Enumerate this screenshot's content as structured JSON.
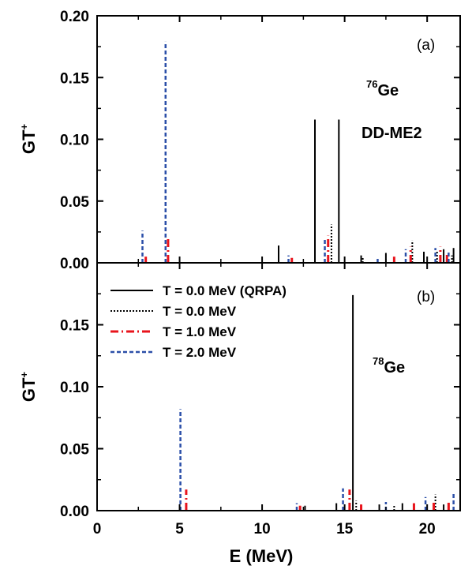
{
  "chart_data": {
    "type": "bar",
    "xlabel": "E (MeV)",
    "ylabel": "GT",
    "ylabel_sup": "+",
    "xlim": [
      0,
      22
    ],
    "x_ticks": [
      "0",
      "5",
      "10",
      "15",
      "20"
    ],
    "series_styles": [
      {
        "name": "T = 0.0 MeV (QRPA)",
        "color": "#000000",
        "dash": "solid"
      },
      {
        "name": "T = 0.0 MeV",
        "color": "#000000",
        "dash": "dotted"
      },
      {
        "name": "T = 1.0 MeV",
        "color": "#e8141c",
        "dash": "dashdot"
      },
      {
        "name": "T = 2.0 MeV",
        "color": "#2b4fa8",
        "dash": "dashed"
      }
    ],
    "panels": [
      {
        "tag": "(a)",
        "nucleus_mass": "76",
        "nucleus_symbol": "Ge",
        "extra_label": "DD-ME2",
        "ylim": [
          0,
          0.2
        ],
        "y_ticks": [
          "0.00",
          "0.05",
          "0.10",
          "0.15",
          "0.20"
        ],
        "series": [
          {
            "name": "T = 0.0 MeV (QRPA)",
            "points": [
              {
                "x": 11.0,
                "y": 0.014
              },
              {
                "x": 13.2,
                "y": 0.116
              },
              {
                "x": 14.65,
                "y": 0.116
              },
              {
                "x": 16.0,
                "y": 0.006
              },
              {
                "x": 17.5,
                "y": 0.008
              },
              {
                "x": 19.8,
                "y": 0.009
              },
              {
                "x": 21.0,
                "y": 0.011
              },
              {
                "x": 21.6,
                "y": 0.012
              }
            ]
          },
          {
            "name": "T = 0.0 MeV",
            "points": [
              {
                "x": 11.0,
                "y": 0.012
              },
              {
                "x": 14.2,
                "y": 0.031
              },
              {
                "x": 16.1,
                "y": 0.005
              },
              {
                "x": 19.1,
                "y": 0.018
              },
              {
                "x": 20.6,
                "y": 0.01
              },
              {
                "x": 21.5,
                "y": 0.006
              }
            ]
          },
          {
            "name": "T = 1.0 MeV",
            "points": [
              {
                "x": 2.95,
                "y": 0.005
              },
              {
                "x": 4.3,
                "y": 0.02
              },
              {
                "x": 11.8,
                "y": 0.004
              },
              {
                "x": 14.0,
                "y": 0.022
              },
              {
                "x": 18.0,
                "y": 0.005
              },
              {
                "x": 19.0,
                "y": 0.013
              },
              {
                "x": 20.8,
                "y": 0.013
              },
              {
                "x": 21.2,
                "y": 0.007
              }
            ]
          },
          {
            "name": "T = 2.0 MeV",
            "points": [
              {
                "x": 2.75,
                "y": 0.026
              },
              {
                "x": 4.15,
                "y": 0.179
              },
              {
                "x": 11.6,
                "y": 0.006
              },
              {
                "x": 13.8,
                "y": 0.02
              },
              {
                "x": 17.0,
                "y": 0.004
              },
              {
                "x": 18.7,
                "y": 0.011
              },
              {
                "x": 20.5,
                "y": 0.012
              },
              {
                "x": 21.3,
                "y": 0.009
              }
            ]
          }
        ]
      },
      {
        "tag": "(b)",
        "nucleus_mass": "78",
        "nucleus_symbol": "Ge",
        "extra_label": "",
        "ylim": [
          0,
          0.2
        ],
        "y_ticks": [
          "0.00",
          "0.05",
          "0.10",
          "0.15",
          ""
        ],
        "series": [
          {
            "name": "T = 0.0 MeV (QRPA)",
            "points": [
              {
                "x": 15.5,
                "y": 0.174
              },
              {
                "x": 12.6,
                "y": 0.004
              },
              {
                "x": 14.5,
                "y": 0.006
              },
              {
                "x": 17.1,
                "y": 0.005
              },
              {
                "x": 18.5,
                "y": 0.006
              },
              {
                "x": 21.0,
                "y": 0.005
              }
            ]
          },
          {
            "name": "T = 0.0 MeV",
            "points": [
              {
                "x": 15.7,
                "y": 0.008
              },
              {
                "x": 18.0,
                "y": 0.004
              },
              {
                "x": 20.5,
                "y": 0.013
              }
            ]
          },
          {
            "name": "T = 1.0 MeV",
            "points": [
              {
                "x": 5.4,
                "y": 0.017
              },
              {
                "x": 12.3,
                "y": 0.004
              },
              {
                "x": 15.3,
                "y": 0.017
              },
              {
                "x": 16.0,
                "y": 0.005
              },
              {
                "x": 19.2,
                "y": 0.006
              },
              {
                "x": 20.4,
                "y": 0.008
              },
              {
                "x": 21.3,
                "y": 0.007
              }
            ]
          },
          {
            "name": "T = 2.0 MeV",
            "points": [
              {
                "x": 5.05,
                "y": 0.082
              },
              {
                "x": 12.1,
                "y": 0.006
              },
              {
                "x": 14.9,
                "y": 0.018
              },
              {
                "x": 17.5,
                "y": 0.007
              },
              {
                "x": 19.9,
                "y": 0.011
              },
              {
                "x": 21.6,
                "y": 0.015
              }
            ]
          }
        ]
      }
    ]
  }
}
